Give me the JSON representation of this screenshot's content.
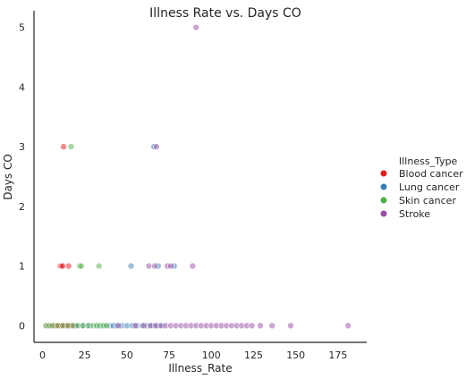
{
  "chart_data": {
    "type": "scatter",
    "title": "Illness Rate vs. Days CO",
    "xlabel": "Illness_Rate",
    "ylabel": "Days CO",
    "xlim": [
      -5,
      192
    ],
    "ylim": [
      -0.28,
      5.28
    ],
    "x_ticks": [
      0,
      25,
      50,
      75,
      100,
      125,
      150,
      175
    ],
    "y_ticks": [
      0,
      1,
      2,
      3,
      4,
      5
    ],
    "grid": false,
    "legend_placement": "right",
    "legend_title": "Illness_Type",
    "series": [
      {
        "name": "Blood cancer",
        "color": "#e41a1c",
        "points": [
          {
            "x": 3,
            "y": 0
          },
          {
            "x": 5,
            "y": 0
          },
          {
            "x": 7,
            "y": 0
          },
          {
            "x": 8,
            "y": 0
          },
          {
            "x": 9,
            "y": 0
          },
          {
            "x": 10,
            "y": 0
          },
          {
            "x": 11,
            "y": 0
          },
          {
            "x": 12,
            "y": 0
          },
          {
            "x": 13,
            "y": 0
          },
          {
            "x": 14,
            "y": 0
          },
          {
            "x": 15,
            "y": 0
          },
          {
            "x": 16,
            "y": 0
          },
          {
            "x": 17,
            "y": 0
          },
          {
            "x": 18,
            "y": 0
          },
          {
            "x": 19,
            "y": 0
          },
          {
            "x": 10.5,
            "y": 1
          },
          {
            "x": 11.2,
            "y": 1
          },
          {
            "x": 12,
            "y": 1
          },
          {
            "x": 15.5,
            "y": 1
          },
          {
            "x": 12.5,
            "y": 3
          }
        ]
      },
      {
        "name": "Lung cancer",
        "color": "#377eb8",
        "points": [
          {
            "x": 20,
            "y": 0
          },
          {
            "x": 24,
            "y": 0
          },
          {
            "x": 28,
            "y": 0
          },
          {
            "x": 33,
            "y": 0
          },
          {
            "x": 37,
            "y": 0
          },
          {
            "x": 40,
            "y": 0
          },
          {
            "x": 42,
            "y": 0
          },
          {
            "x": 44,
            "y": 0
          },
          {
            "x": 47,
            "y": 0
          },
          {
            "x": 50,
            "y": 0
          },
          {
            "x": 53,
            "y": 0
          },
          {
            "x": 56,
            "y": 0
          },
          {
            "x": 59,
            "y": 0
          },
          {
            "x": 62,
            "y": 0
          },
          {
            "x": 65,
            "y": 0
          },
          {
            "x": 68,
            "y": 0
          },
          {
            "x": 71,
            "y": 0
          },
          {
            "x": 52.5,
            "y": 1
          },
          {
            "x": 68.5,
            "y": 1
          },
          {
            "x": 78,
            "y": 1
          },
          {
            "x": 66,
            "y": 3
          }
        ]
      },
      {
        "name": "Skin cancer",
        "color": "#4daf4a",
        "points": [
          {
            "x": 2,
            "y": 0
          },
          {
            "x": 4,
            "y": 0
          },
          {
            "x": 6,
            "y": 0
          },
          {
            "x": 9,
            "y": 0
          },
          {
            "x": 12,
            "y": 0
          },
          {
            "x": 15,
            "y": 0
          },
          {
            "x": 18,
            "y": 0
          },
          {
            "x": 21,
            "y": 0
          },
          {
            "x": 24,
            "y": 0
          },
          {
            "x": 27,
            "y": 0
          },
          {
            "x": 30,
            "y": 0
          },
          {
            "x": 32,
            "y": 0
          },
          {
            "x": 34,
            "y": 0
          },
          {
            "x": 36,
            "y": 0
          },
          {
            "x": 38,
            "y": 0
          },
          {
            "x": 22,
            "y": 1
          },
          {
            "x": 23,
            "y": 1
          },
          {
            "x": 33.5,
            "y": 1
          },
          {
            "x": 17,
            "y": 3
          }
        ]
      },
      {
        "name": "Stroke",
        "color": "#984ea3",
        "points": [
          {
            "x": 45,
            "y": 0
          },
          {
            "x": 55,
            "y": 0
          },
          {
            "x": 60,
            "y": 0
          },
          {
            "x": 64,
            "y": 0
          },
          {
            "x": 67,
            "y": 0
          },
          {
            "x": 70,
            "y": 0
          },
          {
            "x": 73,
            "y": 0
          },
          {
            "x": 76,
            "y": 0
          },
          {
            "x": 79,
            "y": 0
          },
          {
            "x": 82,
            "y": 0
          },
          {
            "x": 85,
            "y": 0
          },
          {
            "x": 88,
            "y": 0
          },
          {
            "x": 91,
            "y": 0
          },
          {
            "x": 94,
            "y": 0
          },
          {
            "x": 97,
            "y": 0
          },
          {
            "x": 100,
            "y": 0
          },
          {
            "x": 103,
            "y": 0
          },
          {
            "x": 106,
            "y": 0
          },
          {
            "x": 109,
            "y": 0
          },
          {
            "x": 112,
            "y": 0
          },
          {
            "x": 115,
            "y": 0
          },
          {
            "x": 118,
            "y": 0
          },
          {
            "x": 121,
            "y": 0
          },
          {
            "x": 124,
            "y": 0
          },
          {
            "x": 129,
            "y": 0
          },
          {
            "x": 136,
            "y": 0
          },
          {
            "x": 147,
            "y": 0
          },
          {
            "x": 181,
            "y": 0
          },
          {
            "x": 63,
            "y": 1
          },
          {
            "x": 66.5,
            "y": 1
          },
          {
            "x": 74,
            "y": 1
          },
          {
            "x": 76,
            "y": 1
          },
          {
            "x": 89,
            "y": 1
          },
          {
            "x": 67.5,
            "y": 3
          },
          {
            "x": 91,
            "y": 5
          }
        ]
      }
    ]
  }
}
